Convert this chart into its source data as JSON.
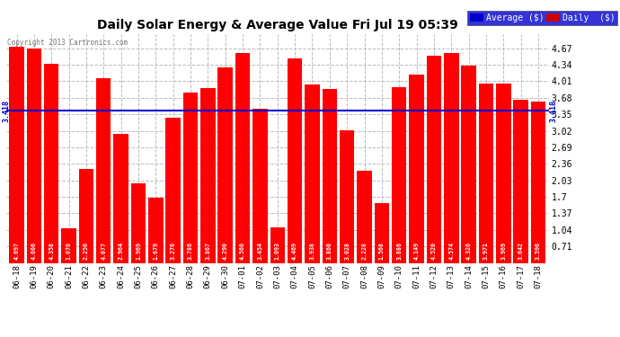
{
  "title": "Daily Solar Energy & Average Value Fri Jul 19 05:39",
  "copyright": "Copyright 2013 Cartronics.com",
  "categories": [
    "06-18",
    "06-19",
    "06-20",
    "06-21",
    "06-22",
    "06-23",
    "06-24",
    "06-25",
    "06-26",
    "06-27",
    "06-28",
    "06-29",
    "06-30",
    "07-01",
    "07-02",
    "07-03",
    "07-04",
    "07-05",
    "07-06",
    "07-07",
    "07-08",
    "07-09",
    "07-10",
    "07-11",
    "07-12",
    "07-13",
    "07-14",
    "07-15",
    "07-16",
    "07-17",
    "07-18"
  ],
  "values": [
    4.697,
    4.666,
    4.358,
    1.07,
    2.256,
    4.077,
    2.964,
    1.969,
    1.679,
    3.276,
    3.786,
    3.867,
    4.29,
    4.566,
    3.454,
    1.093,
    4.469,
    3.938,
    3.86,
    3.028,
    2.228,
    1.568,
    3.886,
    4.149,
    4.52,
    4.574,
    4.326,
    3.971,
    3.969,
    3.642,
    3.596
  ],
  "average": 3.418,
  "bar_color": "#ff0000",
  "average_line_color": "#0000cc",
  "background_color": "#ffffff",
  "plot_bg_color": "#ffffff",
  "grid_color": "#bbbbbb",
  "ylim_min": 0.38,
  "ylim_max": 4.96,
  "yticks": [
    0.71,
    1.04,
    1.37,
    1.7,
    2.03,
    2.36,
    2.69,
    3.02,
    3.35,
    3.68,
    4.01,
    4.34,
    4.67
  ],
  "avg_label": "3.418",
  "legend_avg_color": "#0000cc",
  "legend_daily_color": "#cc0000",
  "legend_avg_text": "Average ($)",
  "legend_daily_text": "Daily  ($)"
}
